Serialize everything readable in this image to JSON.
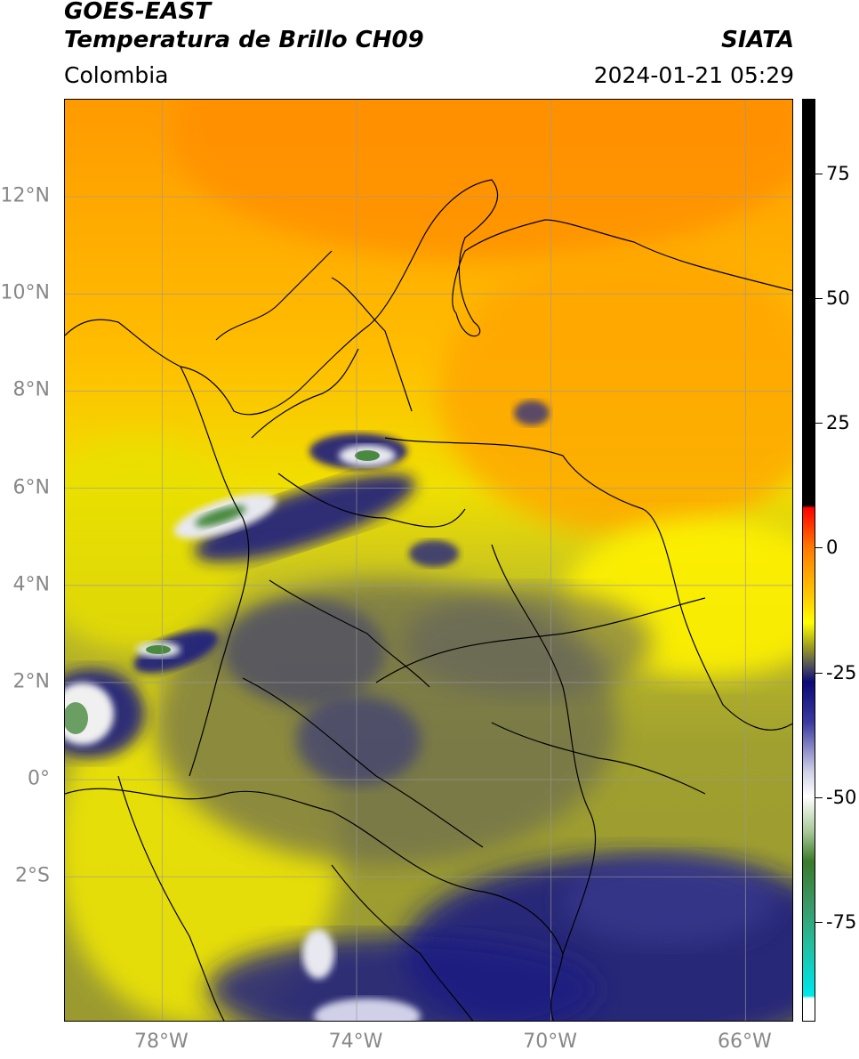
{
  "header": {
    "line1": "GOES-EAST",
    "line2": "Temperatura de Brillo CH09",
    "region": "Colombia",
    "org": "SIATA",
    "datetime": "2024-01-21 05:29"
  },
  "map": {
    "lon_range": [
      -80,
      -65
    ],
    "lat_range": [
      -5,
      14
    ],
    "lat_ticks": [
      {
        "value": 12,
        "label": "12°N"
      },
      {
        "value": 10,
        "label": "10°N"
      },
      {
        "value": 8,
        "label": "8°N"
      },
      {
        "value": 6,
        "label": "6°N"
      },
      {
        "value": 4,
        "label": "4°N"
      },
      {
        "value": 2,
        "label": "2°N"
      },
      {
        "value": 0,
        "label": "0°"
      },
      {
        "value": -2,
        "label": "2°S"
      }
    ],
    "lon_ticks": [
      {
        "value": -78,
        "label": "78°W"
      },
      {
        "value": -74,
        "label": "74°W"
      },
      {
        "value": -70,
        "label": "70°W"
      },
      {
        "value": -66,
        "label": "66°W"
      }
    ],
    "colors": {
      "warm_orange": "#ff9a00",
      "orange_yellow": "#ffbe00",
      "yellow": "#ffee00",
      "olive": "#b8b820",
      "dark_olive": "#707050",
      "navy": "#1a1a80",
      "white_cloud": "#f0f0f0",
      "green_core": "#4a8a40"
    }
  },
  "colorbar": {
    "range": [
      -95,
      90
    ],
    "ticks": [
      {
        "value": 75,
        "label": "75"
      },
      {
        "value": 50,
        "label": "50"
      },
      {
        "value": 25,
        "label": "25"
      },
      {
        "value": 0,
        "label": "0"
      },
      {
        "value": -25,
        "label": "-25"
      },
      {
        "value": -50,
        "label": "-50"
      },
      {
        "value": -75,
        "label": "-75"
      }
    ],
    "stops": [
      {
        "value": 90,
        "color": "#000000"
      },
      {
        "value": 8.5,
        "color": "#000000"
      },
      {
        "value": 8,
        "color": "#ff0000"
      },
      {
        "value": 0,
        "color": "#ff7a00"
      },
      {
        "value": -10,
        "color": "#ffcc00"
      },
      {
        "value": -15,
        "color": "#ffff00"
      },
      {
        "value": -20,
        "color": "#9a9a20"
      },
      {
        "value": -24,
        "color": "#4a4a60"
      },
      {
        "value": -27,
        "color": "#0a0a78"
      },
      {
        "value": -35,
        "color": "#3a3aa0"
      },
      {
        "value": -45,
        "color": "#d0d0e8"
      },
      {
        "value": -50,
        "color": "#ffffff"
      },
      {
        "value": -57,
        "color": "#a8c898"
      },
      {
        "value": -63,
        "color": "#3a7a2a"
      },
      {
        "value": -72,
        "color": "#3a9a6a"
      },
      {
        "value": -80,
        "color": "#20c0a0"
      },
      {
        "value": -88,
        "color": "#00e0e0"
      },
      {
        "value": -90,
        "color": "#00e8e8"
      },
      {
        "value": -90.5,
        "color": "#ffffff"
      },
      {
        "value": -95,
        "color": "#ffffff"
      }
    ]
  }
}
